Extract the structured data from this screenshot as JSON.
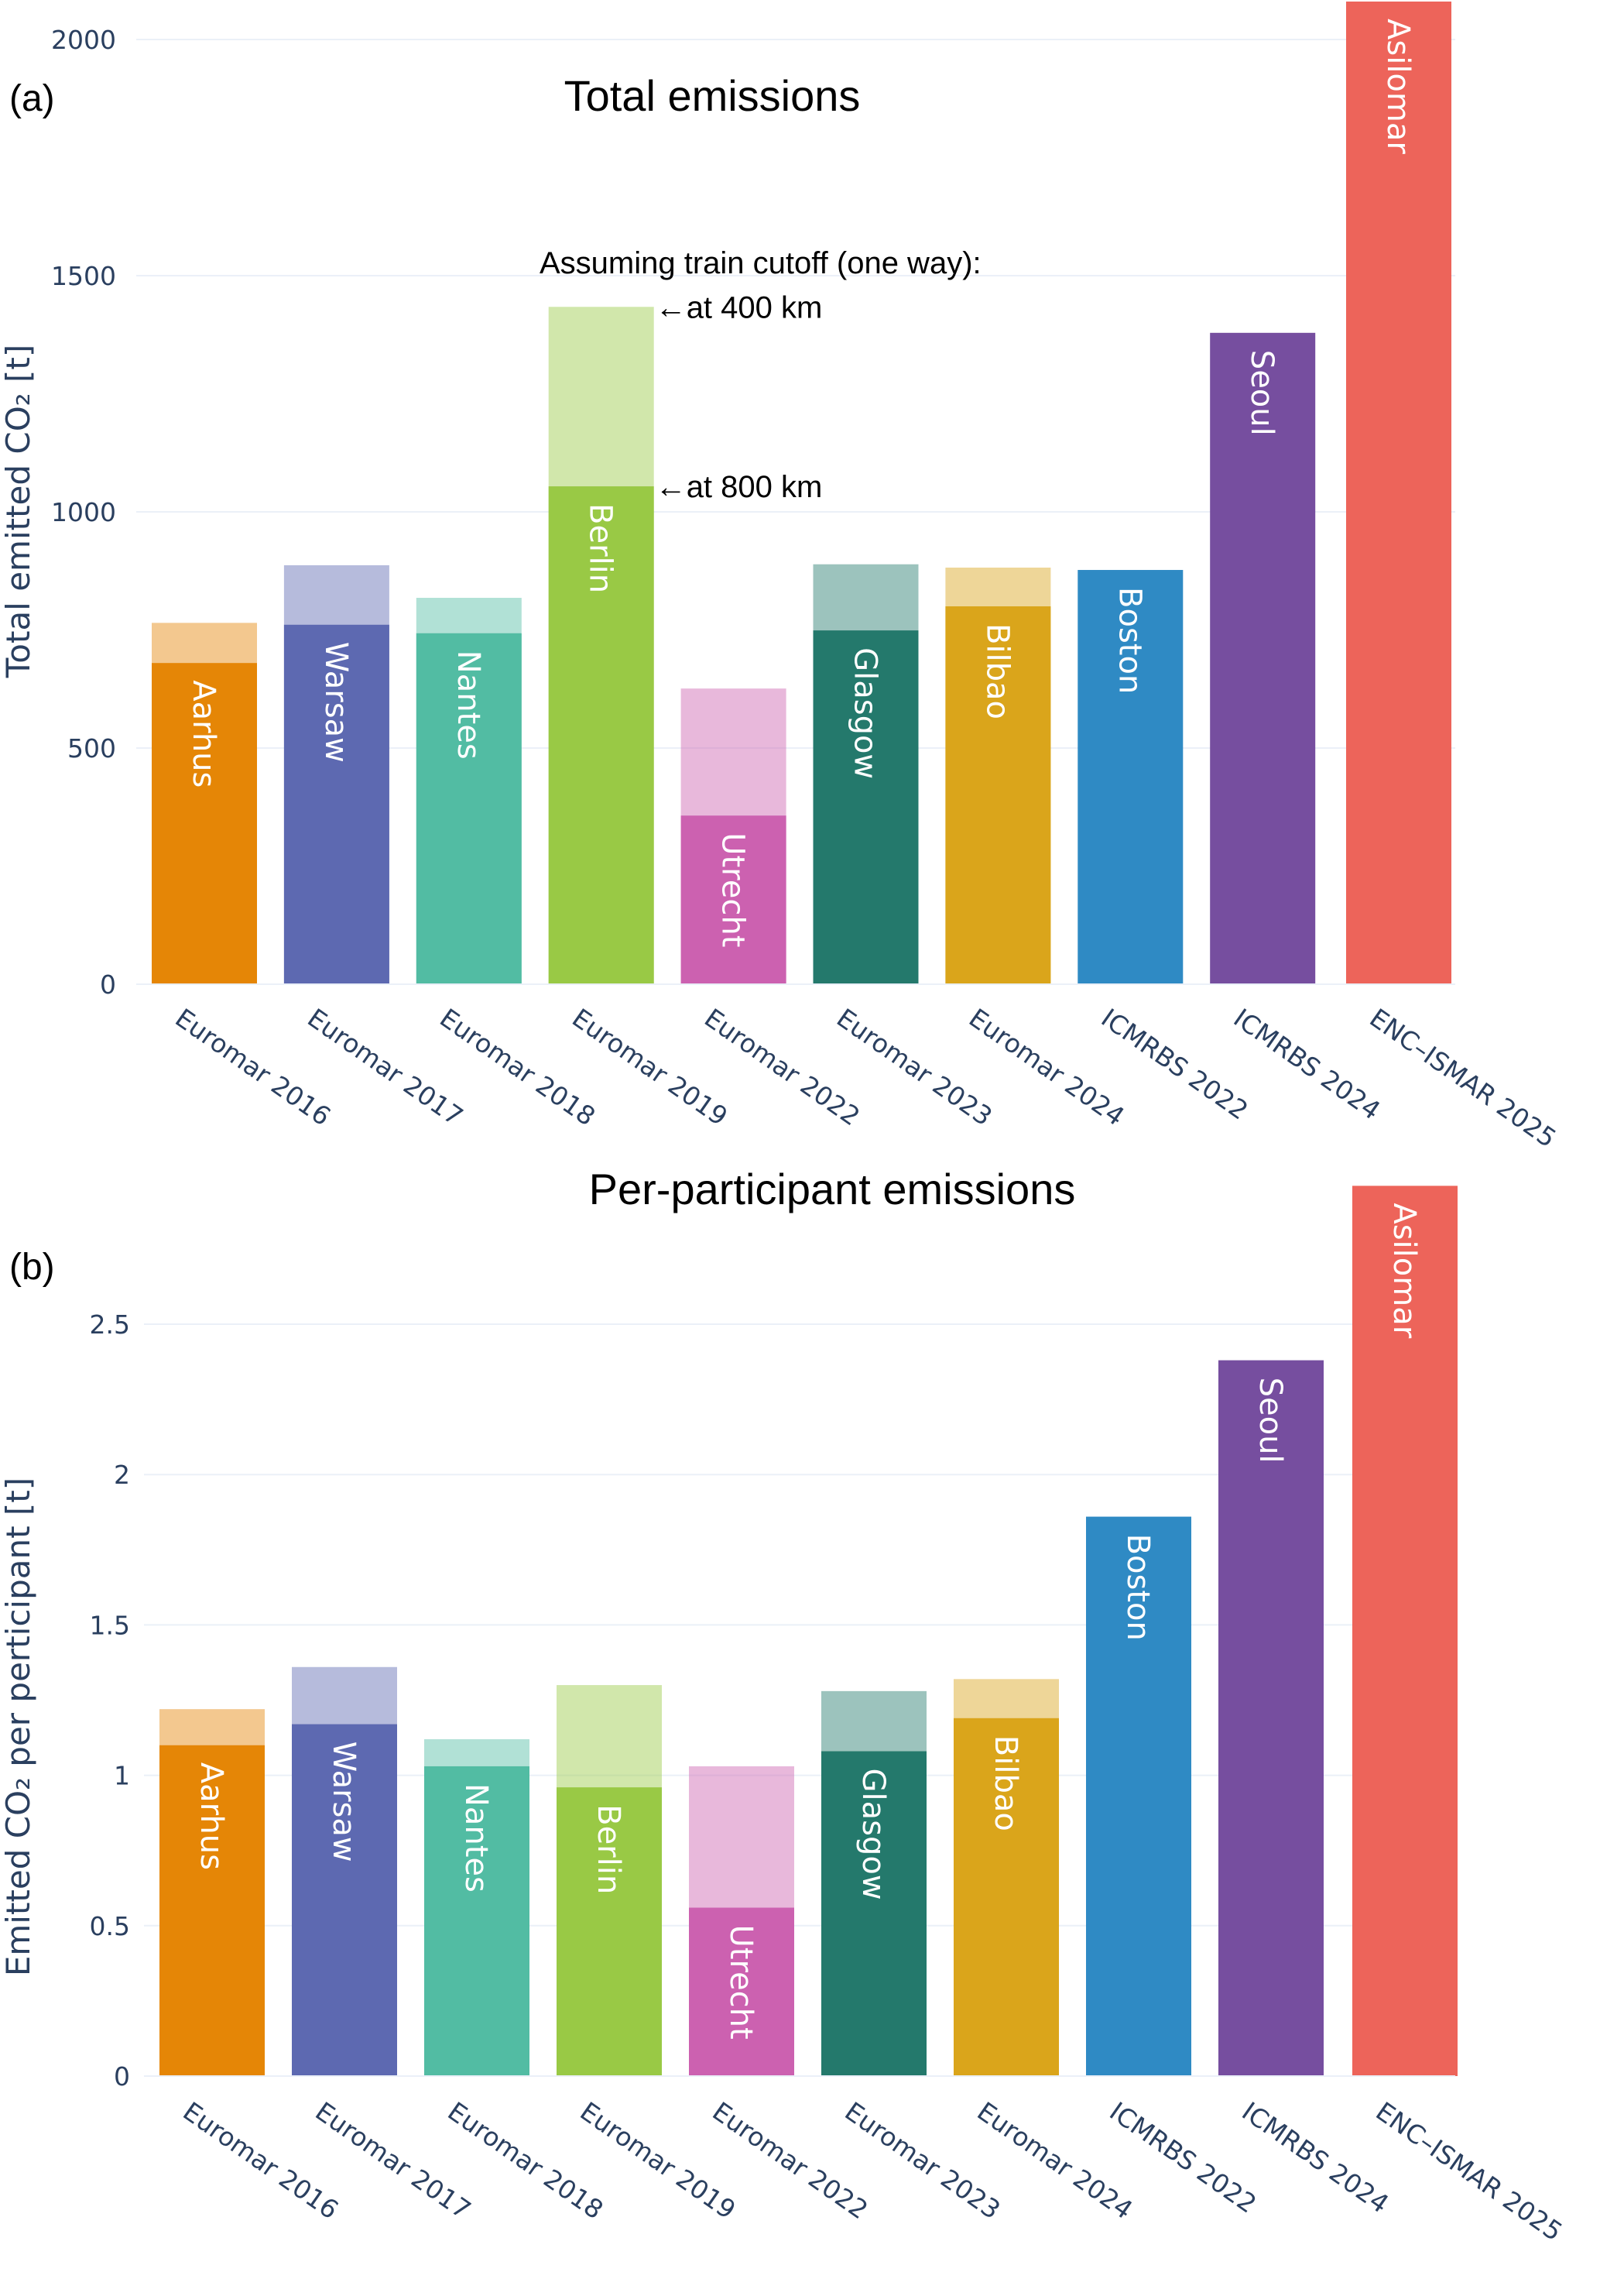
{
  "chart_data": [
    {
      "type": "bar",
      "panel_tag": "(a)",
      "title": "Total emissions",
      "xlabel": "",
      "ylabel": "Total emitted CO₂ [t]",
      "ylim": [
        0,
        2000
      ],
      "yticks": [
        0,
        500,
        1000,
        1500,
        2000
      ],
      "ytick_labels": [
        "0",
        "500",
        "1000",
        "1500",
        "2000"
      ],
      "grid": true,
      "barmode": "overlay",
      "categories": [
        "Euromar 2016",
        "Euromar 2017",
        "Euromar 2018",
        "Euromar 2019",
        "Euromar 2022",
        "Euromar 2023",
        "Euromar 2024",
        "ICMRBS 2022",
        "ICMRBS 2024",
        "ENC–ISMAR 2025"
      ],
      "bar_text": [
        "Aarhus",
        "Warsaw",
        "Nantes",
        "Berlin",
        "Utrecht",
        "Glasgow",
        "Bilbao",
        "Boston",
        "Seoul",
        "Asilomar"
      ],
      "colors": [
        "#E58606",
        "#5D69B1",
        "#52BCA3",
        "#99C945",
        "#CC61B0",
        "#24796C",
        "#DAA51B",
        "#2F8AC4",
        "#764E9F",
        "#ED645A"
      ],
      "series": [
        {
          "name": "train cutoff at 400 km",
          "opacity": 0.45,
          "values": [
            765,
            887,
            818,
            1434,
            626,
            889,
            882,
            null,
            null,
            null
          ]
        },
        {
          "name": "train cutoff at 800 km",
          "opacity": 1.0,
          "values": [
            680,
            761,
            743,
            1054,
            357,
            749,
            800,
            877,
            1379,
            2090
          ]
        }
      ],
      "annotations": [
        {
          "text": "Assuming train cutoff (one way):",
          "anchor_category": "Euromar 2019"
        },
        {
          "text": "←at 400 km",
          "anchor_category": "Euromar 2019",
          "y": 1434
        },
        {
          "text": "←at 800 km",
          "anchor_category": "Euromar 2019",
          "y": 1054
        }
      ]
    },
    {
      "type": "bar",
      "panel_tag": "(b)",
      "title": "Per-participant emissions",
      "xlabel": "",
      "ylabel": "Emitted CO₂ per perticipant [t]",
      "ylim": [
        0,
        2.5
      ],
      "yticks": [
        0,
        0.5,
        1,
        1.5,
        2,
        2.5
      ],
      "ytick_labels": [
        "0",
        "0.5",
        "1",
        "1.5",
        "2",
        "2.5"
      ],
      "grid": true,
      "barmode": "overlay",
      "categories": [
        "Euromar 2016",
        "Euromar 2017",
        "Euromar 2018",
        "Euromar 2019",
        "Euromar 2022",
        "Euromar 2023",
        "Euromar 2024",
        "ICMRBS 2022",
        "ICMRBS 2024",
        "ENC–ISMAR 2025"
      ],
      "bar_text": [
        "Aarhus",
        "Warsaw",
        "Nantes",
        "Berlin",
        "Utrecht",
        "Glasgow",
        "Bilbao",
        "Boston",
        "Seoul",
        "Asilomar"
      ],
      "colors": [
        "#E58606",
        "#5D69B1",
        "#52BCA3",
        "#99C945",
        "#CC61B0",
        "#24796C",
        "#DAA51B",
        "#2F8AC4",
        "#764E9F",
        "#ED645A"
      ],
      "series": [
        {
          "name": "train cutoff at 400 km",
          "opacity": 0.45,
          "values": [
            1.22,
            1.36,
            1.12,
            1.3,
            1.03,
            1.28,
            1.32,
            null,
            null,
            null
          ]
        },
        {
          "name": "train cutoff at 800 km",
          "opacity": 1.0,
          "values": [
            1.1,
            1.17,
            1.03,
            0.96,
            0.56,
            1.08,
            1.19,
            1.86,
            2.38,
            2.96
          ]
        }
      ],
      "annotations": []
    }
  ]
}
